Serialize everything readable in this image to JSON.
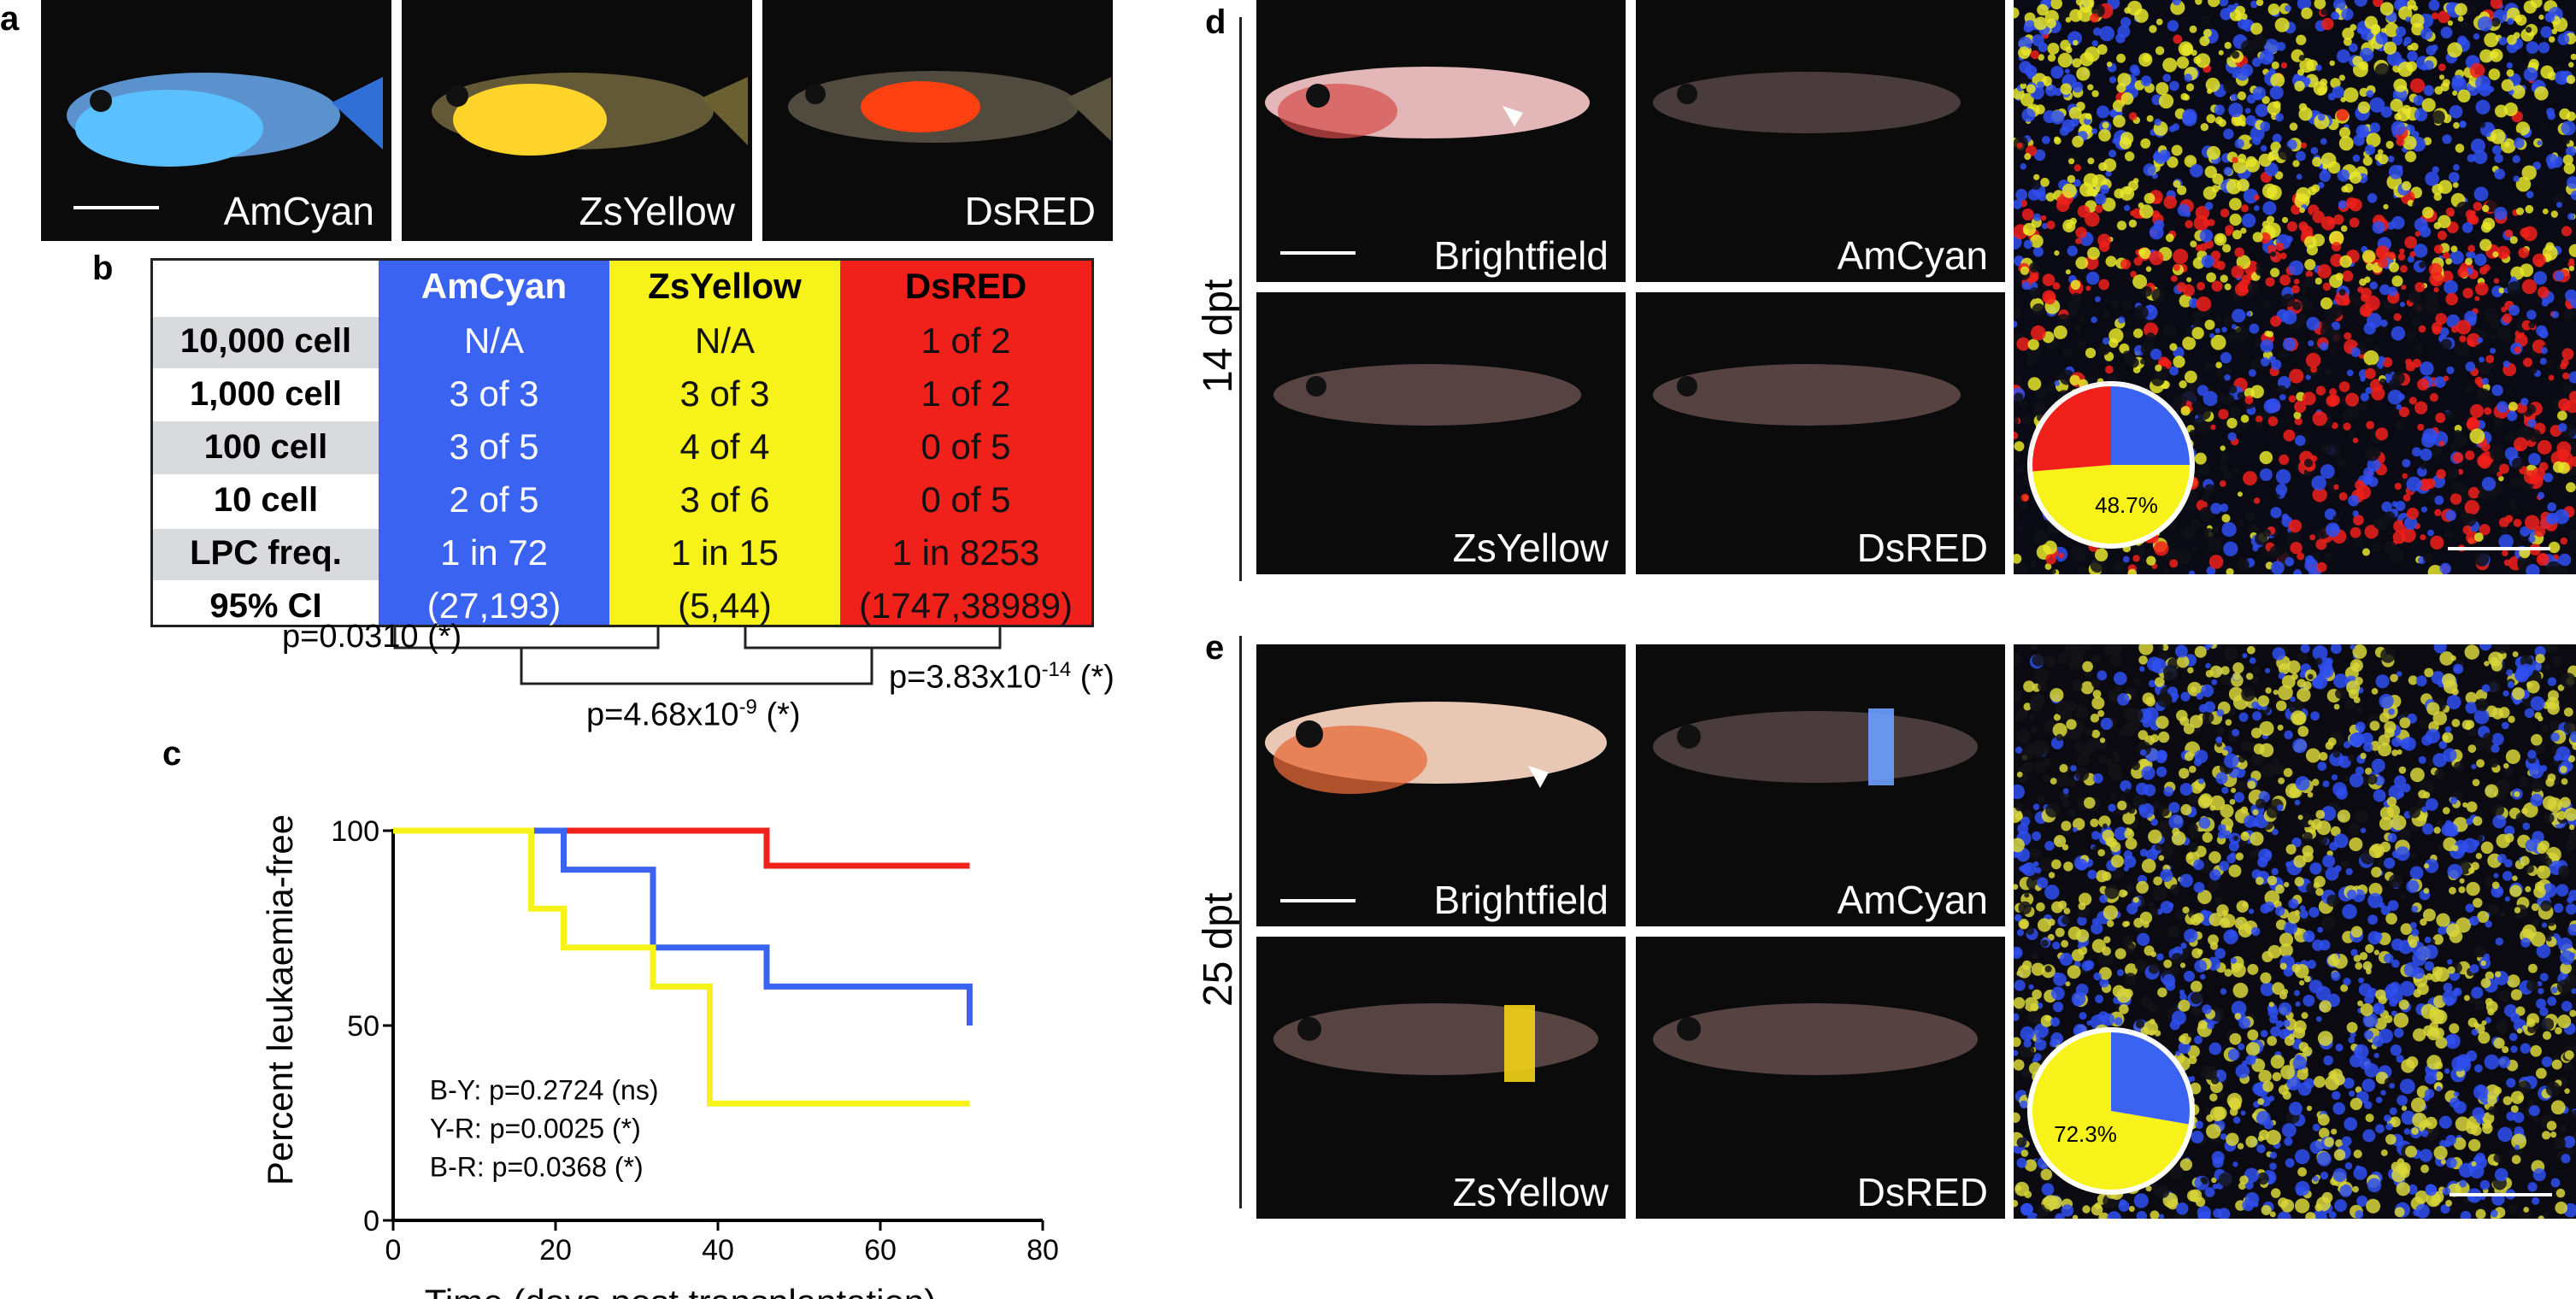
{
  "panels": {
    "a": "a",
    "b": "b",
    "c": "c",
    "d": "d",
    "e": "e"
  },
  "panel_a": {
    "captions": [
      "AmCyan",
      "ZsYellow",
      "DsRED"
    ]
  },
  "panel_b": {
    "columns": [
      {
        "name": "AmCyan",
        "color": "#3a63f2",
        "values": [
          "N/A",
          "3 of 3",
          "3 of 5",
          "2 of 5",
          "1 in 72",
          "(27,193)"
        ]
      },
      {
        "name": "ZsYellow",
        "color": "#f7f21a",
        "values": [
          "N/A",
          "3 of 3",
          "4 of 4",
          "3 of 6",
          "1 in 15",
          "(5,44)"
        ]
      },
      {
        "name": "DsRED",
        "color": "#f0201a",
        "values": [
          "1 of 2",
          "1 of 2",
          "0 of 5",
          "0 of 5",
          "1 in 8253",
          "(1747,38989)"
        ]
      }
    ],
    "row_labels": [
      "10,000 cell",
      "1,000 cell",
      "100 cell",
      "10 cell",
      "LPC freq.",
      "95% CI"
    ],
    "pvalues": {
      "p1": "p=0.0310 (*)",
      "p2_base": "p=4.68x10",
      "p2_exp": "-9",
      "p2_tail": " (*)",
      "p3_base": "p=3.83x10",
      "p3_exp": "-14",
      "p3_tail": " (*)"
    }
  },
  "chart_data": {
    "type": "line",
    "xlabel": "Time (days post transplantation)",
    "ylabel": "Percent leukaemia-free",
    "xlim": [
      0,
      80
    ],
    "ylim": [
      0,
      100
    ],
    "xticks": [
      0,
      20,
      40,
      60,
      80
    ],
    "yticks": [
      0,
      50,
      100
    ],
    "series": [
      {
        "color": "#f0201a",
        "steps": [
          [
            0,
            100
          ],
          [
            46,
            100
          ],
          [
            46,
            91
          ],
          [
            71,
            91
          ]
        ]
      },
      {
        "color": "#3a63f2",
        "steps": [
          [
            0,
            100
          ],
          [
            21,
            100
          ],
          [
            21,
            90
          ],
          [
            32,
            90
          ],
          [
            32,
            70
          ],
          [
            46,
            70
          ],
          [
            46,
            60
          ],
          [
            71,
            60
          ],
          [
            71,
            50
          ]
        ]
      },
      {
        "color": "#f7f21a",
        "steps": [
          [
            0,
            100
          ],
          [
            17,
            100
          ],
          [
            17,
            80
          ],
          [
            21,
            80
          ],
          [
            21,
            70
          ],
          [
            32,
            70
          ],
          [
            32,
            60
          ],
          [
            39,
            60
          ],
          [
            39,
            30
          ],
          [
            71,
            30
          ]
        ]
      }
    ],
    "annotations": [
      "B-Y: p=0.2724 (ns)",
      "Y-R: p=0.0025 (*)",
      "B-R: p=0.0368 (*)"
    ]
  },
  "panel_d": {
    "side_label": "14 dpt",
    "captions": [
      "Brightfield",
      "AmCyan",
      "ZsYellow",
      "DsRED"
    ],
    "pie": {
      "label": "48.7%",
      "fractions": {
        "blue": 0.25,
        "yellow": 0.487,
        "red": 0.263
      }
    }
  },
  "panel_e": {
    "side_label": "25 dpt",
    "captions": [
      "Brightfield",
      "AmCyan",
      "ZsYellow",
      "DsRED"
    ],
    "pie": {
      "label": "72.3%",
      "fractions": {
        "blue": 0.277,
        "yellow": 0.723
      }
    }
  },
  "colors": {
    "blue": "#3a63f2",
    "yellow": "#f7f21a",
    "red": "#f0201a"
  }
}
